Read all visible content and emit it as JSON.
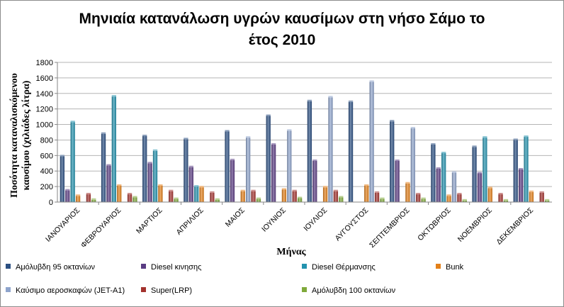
{
  "chart_data": {
    "type": "bar",
    "title_line1": "Μηνιαία κατανάλωση υγρών καυσίμων στη νήσο Σάμο το",
    "title_line2": "έτος 2010",
    "xlabel": "Μήνας",
    "ylabel_line1": "Ποσότητα καταναλισκόμενου",
    "ylabel_line2": "καυσίμου (χιλιάδες λίτρα)",
    "ylim": [
      0,
      1800
    ],
    "yticks": [
      0,
      200,
      400,
      600,
      800,
      1000,
      1200,
      1400,
      1600,
      1800
    ],
    "grid": true,
    "legend_position": "bottom",
    "categories": [
      "ΙΑΝΟΥΑΡΙΟΣ",
      "ΦΕΒΡΟΥΑΡΙΟΣ",
      "ΜΑΡΤΙΟΣ",
      "ΑΠΡΙΛΙΟΣ",
      "ΜΑΙΟΣ",
      "ΙΟΥΝΙΟΣ",
      "ΙΟΥΛΙΟΣ",
      "ΑΥΓΟΥΣΤΟΣ",
      "ΣΕΠΤΕΜΒΡΙΟΣ",
      "ΟΚΤΩΒΡΙΟΣ",
      "ΝΟΕΜΒΡΙΟΣ",
      "ΔΕΚΕΜΒΡΙΟΣ"
    ],
    "series": [
      {
        "name": "Αμόλυβδη 95 οκτανίων",
        "color": "#2b4f82",
        "values": [
          590,
          880,
          850,
          810,
          910,
          1110,
          1300,
          1290,
          1040,
          740,
          710,
          800
        ]
      },
      {
        "name": "Diesel κινησης",
        "color": "#5a3c83",
        "values": [
          150,
          470,
          500,
          450,
          540,
          740,
          530,
          0,
          530,
          430,
          370,
          420
        ]
      },
      {
        "name": "Diesel Θέρμανσης",
        "color": "#2392ae",
        "values": [
          1030,
          1360,
          660,
          200,
          0,
          0,
          0,
          0,
          0,
          630,
          830,
          840
        ]
      },
      {
        "name": "Bunk",
        "color": "#e38019",
        "values": [
          80,
          210,
          210,
          190,
          140,
          160,
          190,
          210,
          240,
          80,
          180,
          130
        ]
      },
      {
        "name": "Καύσιμο αεροσκαφών (JET-A1)",
        "color": "#8ea4cc",
        "values": [
          0,
          0,
          0,
          0,
          830,
          920,
          1350,
          1550,
          950,
          380,
          0,
          0
        ]
      },
      {
        "name": "Super(LRP)",
        "color": "#a3312d",
        "values": [
          100,
          100,
          140,
          120,
          140,
          140,
          140,
          120,
          100,
          100,
          100,
          120
        ]
      },
      {
        "name": "Αμόλυβδη 100 οκτανίων",
        "color": "#7fa93a",
        "values": [
          30,
          60,
          40,
          30,
          40,
          50,
          60,
          40,
          40,
          20,
          20,
          20
        ]
      }
    ]
  }
}
